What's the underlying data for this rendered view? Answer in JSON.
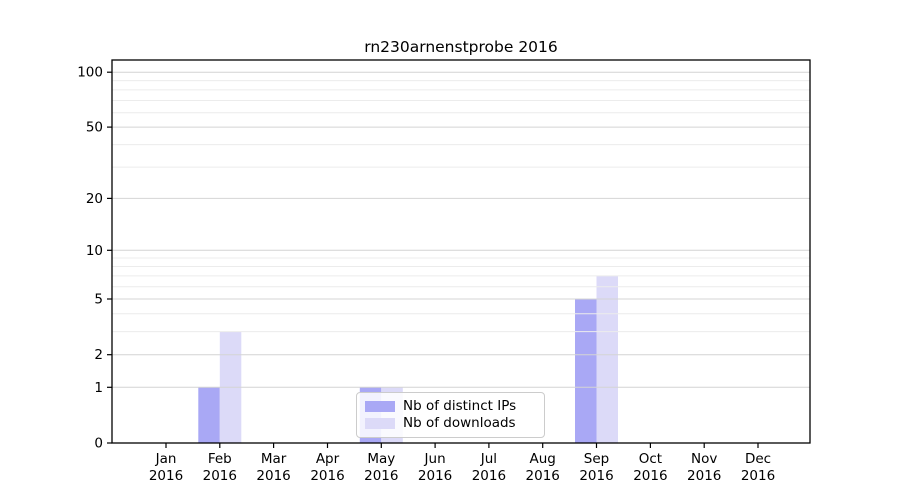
{
  "chart_data": {
    "type": "bar",
    "title": "rn230arnenstprobe 2016",
    "categories": [
      "Jan 2016",
      "Feb 2016",
      "Mar 2016",
      "Apr 2016",
      "May 2016",
      "Jun 2016",
      "Jul 2016",
      "Aug 2016",
      "Sep 2016",
      "Oct 2016",
      "Nov 2016",
      "Dec 2016"
    ],
    "series": [
      {
        "name": "Nb of distinct IPs",
        "color": "#a9a8f5",
        "values": [
          0,
          1,
          0,
          0,
          1,
          0,
          0,
          0,
          5,
          0,
          0,
          0
        ]
      },
      {
        "name": "Nb of downloads",
        "color": "#dcdaf8",
        "values": [
          0,
          3,
          0,
          0,
          1,
          0,
          0,
          0,
          7,
          0,
          0,
          0
        ]
      }
    ],
    "yscale": "log1p",
    "ylim": [
      0,
      116
    ],
    "yticks": [
      0,
      1,
      2,
      5,
      10,
      20,
      50,
      100
    ],
    "minor_gridlines": [
      3,
      4,
      6,
      7,
      8,
      9,
      30,
      40,
      60,
      70,
      80,
      90
    ],
    "grid": true,
    "legend_position": "lower center",
    "colors": {
      "major_grid": "#d4d4d4",
      "minor_grid": "#ececec",
      "axis": "#000000",
      "text": "#000000",
      "background": "#ffffff"
    }
  }
}
